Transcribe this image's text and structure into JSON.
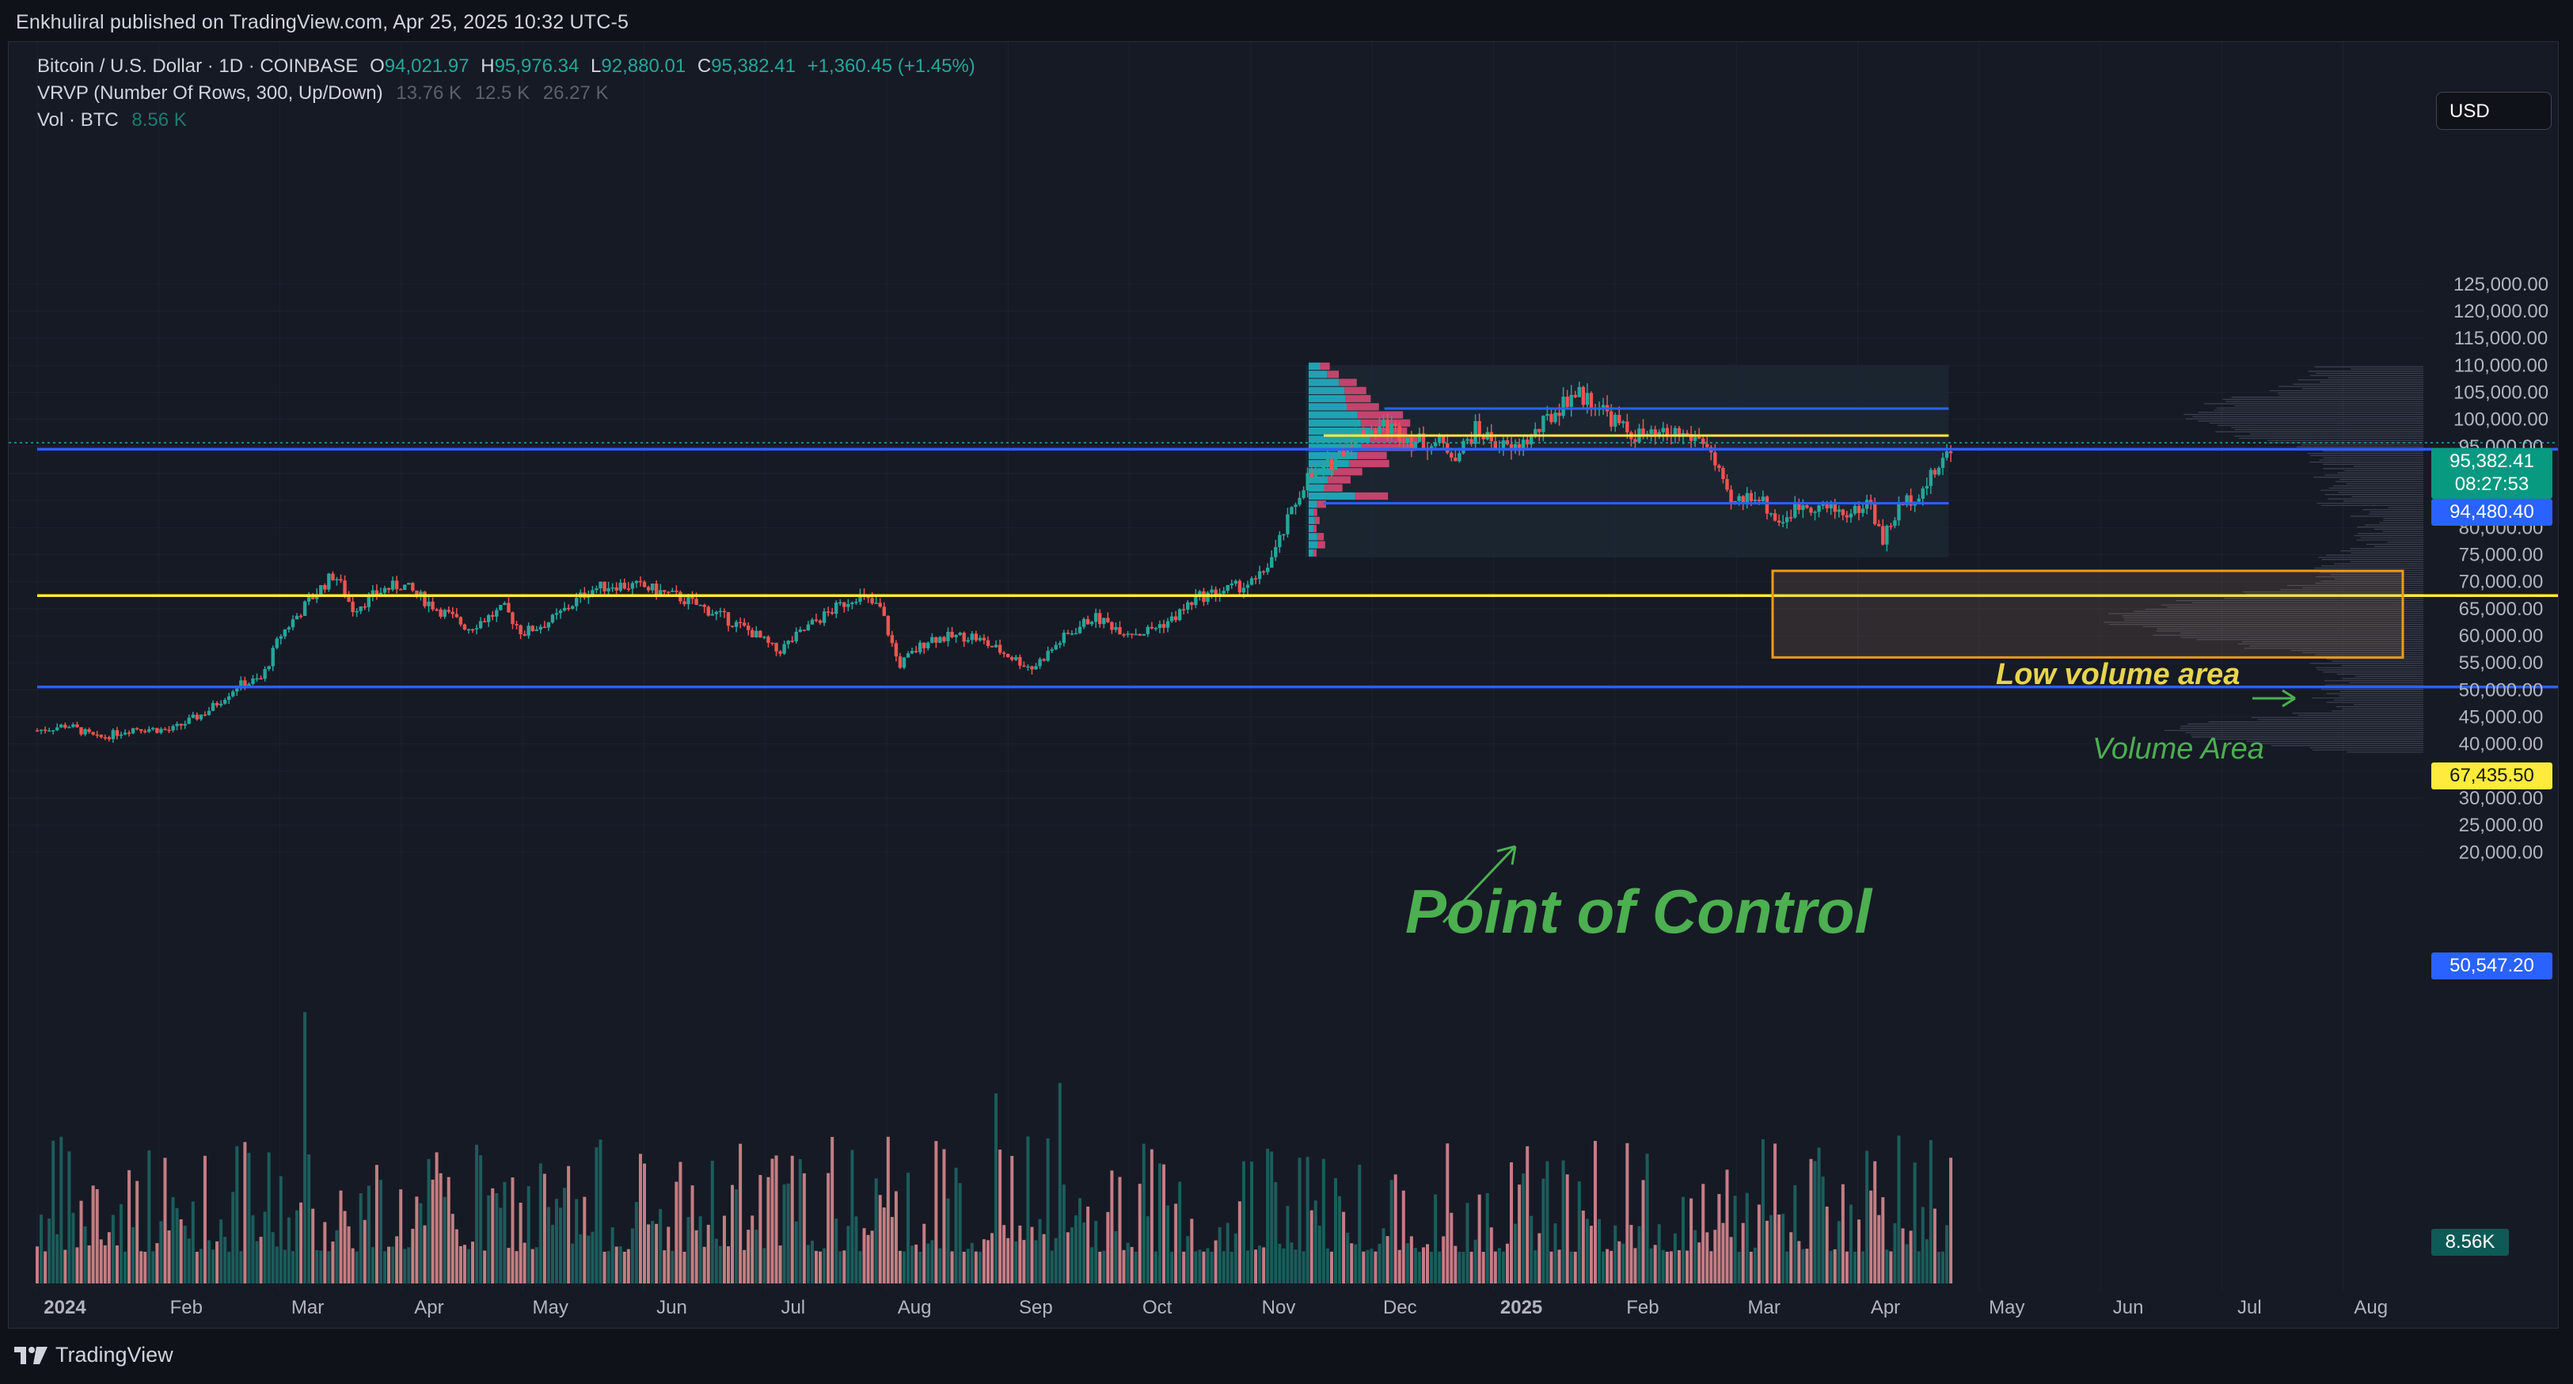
{
  "header": {
    "publisher_text": "Enkhuliral published on TradingView.com, Apr 25, 2025 10:32 UTC-5"
  },
  "legend": {
    "symbol_line": "Bitcoin / U.S. Dollar · 1D · COINBASE",
    "ohlc": {
      "o_label": "O",
      "o": "94,021.97",
      "h_label": "H",
      "h": "95,976.34",
      "l_label": "L",
      "l": "92,880.01",
      "c_label": "C",
      "c": "95,382.41",
      "change": "+1,360.45 (+1.45%)"
    },
    "vrvp_line": "VRVP (Number Of Rows, 300, Up/Down)",
    "vrvp_values": [
      "13.76 K",
      "12.5 K",
      "26.27 K"
    ],
    "vol_line": "Vol · BTC",
    "vol_value": "8.56 K"
  },
  "toolbar": {
    "currency_label": "USD"
  },
  "price_tags": {
    "last_price": "95,382.41",
    "countdown": "08:27:53",
    "blue_line_upper": "94,480.40",
    "yellow_line": "67,435.50",
    "blue_line_lower": "50,547.20",
    "volume_tag": "8.56K"
  },
  "annotations": {
    "low_volume_area": "Low volume area",
    "volume_area": "Volume Area",
    "point_of_control": "Point of Control"
  },
  "footer": {
    "brand": "TradingView"
  },
  "colors": {
    "up": "#26a69a",
    "down": "#ef5350",
    "blue_line": "#2962ff",
    "yellow_line": "#ffeb3b",
    "annotation_green": "#4caf50",
    "annotation_yellow": "#e8d44d",
    "box_orange": "#f09a1a",
    "vrvp_up": "#22b8c9",
    "vrvp_down": "#e04a78"
  },
  "chart_data": {
    "type": "candlestick",
    "title": "Bitcoin / U.S. Dollar · 1D · COINBASE",
    "y_axis": {
      "ticks": [
        "20,000.00",
        "25,000.00",
        "30,000.00",
        "35,000.00",
        "40,000.00",
        "45,000.00",
        "50,000.00",
        "55,000.00",
        "60,000.00",
        "65,000.00",
        "70,000.00",
        "75,000.00",
        "80,000.00",
        "85,000.00",
        "90,000.00",
        "95,000.00",
        "100,000.00",
        "105,000.00",
        "110,000.00",
        "115,000.00",
        "120,000.00",
        "125,000.00"
      ],
      "range": [
        20000,
        128000
      ]
    },
    "x_axis": {
      "ticks": [
        {
          "label": "2024",
          "month_index": 0,
          "bold": true
        },
        {
          "label": "Feb",
          "month_index": 1
        },
        {
          "label": "Mar",
          "month_index": 2
        },
        {
          "label": "Apr",
          "month_index": 3
        },
        {
          "label": "May",
          "month_index": 4
        },
        {
          "label": "Jun",
          "month_index": 5
        },
        {
          "label": "Jul",
          "month_index": 6
        },
        {
          "label": "Aug",
          "month_index": 7
        },
        {
          "label": "Sep",
          "month_index": 8
        },
        {
          "label": "Oct",
          "month_index": 9
        },
        {
          "label": "Nov",
          "month_index": 10
        },
        {
          "label": "Dec",
          "month_index": 11
        },
        {
          "label": "2025",
          "month_index": 12,
          "bold": true
        },
        {
          "label": "Feb",
          "month_index": 13
        },
        {
          "label": "Mar",
          "month_index": 14
        },
        {
          "label": "Apr",
          "month_index": 15
        },
        {
          "label": "May",
          "month_index": 16
        },
        {
          "label": "Jun",
          "month_index": 17
        },
        {
          "label": "Jul",
          "month_index": 18
        },
        {
          "label": "Aug",
          "month_index": 19
        }
      ]
    },
    "price_path_anchors": [
      [
        0,
        42500
      ],
      [
        0.25,
        43500
      ],
      [
        0.5,
        41000
      ],
      [
        0.8,
        43000
      ],
      [
        1.1,
        42500
      ],
      [
        1.4,
        46000
      ],
      [
        1.65,
        50800
      ],
      [
        1.85,
        52000
      ],
      [
        2.0,
        60000
      ],
      [
        2.3,
        68000
      ],
      [
        2.45,
        71500
      ],
      [
        2.6,
        65000
      ],
      [
        2.85,
        68500
      ],
      [
        3.0,
        69500
      ],
      [
        3.3,
        65000
      ],
      [
        3.55,
        61500
      ],
      [
        3.85,
        65000
      ],
      [
        4.0,
        60500
      ],
      [
        4.25,
        63000
      ],
      [
        4.55,
        68500
      ],
      [
        4.75,
        69500
      ],
      [
        5.0,
        69000
      ],
      [
        5.3,
        67000
      ],
      [
        5.6,
        64000
      ],
      [
        5.9,
        60500
      ],
      [
        6.1,
        57000
      ],
      [
        6.4,
        62500
      ],
      [
        6.75,
        67500
      ],
      [
        6.95,
        65000
      ],
      [
        7.1,
        54500
      ],
      [
        7.35,
        59500
      ],
      [
        7.7,
        60000
      ],
      [
        7.95,
        57000
      ],
      [
        8.2,
        54000
      ],
      [
        8.45,
        59500
      ],
      [
        8.7,
        63500
      ],
      [
        8.95,
        61000
      ],
      [
        9.1,
        60500
      ],
      [
        9.35,
        63000
      ],
      [
        9.55,
        67000
      ],
      [
        9.8,
        68500
      ],
      [
        10.05,
        70000
      ],
      [
        10.2,
        75500
      ],
      [
        10.45,
        89000
      ],
      [
        10.6,
        90500
      ],
      [
        10.85,
        97000
      ],
      [
        11.1,
        99000
      ],
      [
        11.35,
        96000
      ],
      [
        11.55,
        95500
      ],
      [
        11.7,
        93500
      ],
      [
        11.85,
        98000
      ],
      [
        12.15,
        94000
      ],
      [
        12.35,
        97500
      ],
      [
        12.65,
        105000
      ],
      [
        12.85,
        103000
      ],
      [
        13.1,
        97500
      ],
      [
        13.3,
        96500
      ],
      [
        13.5,
        97500
      ],
      [
        13.75,
        96000
      ],
      [
        13.95,
        84000
      ],
      [
        14.15,
        86500
      ],
      [
        14.35,
        81000
      ],
      [
        14.55,
        84500
      ],
      [
        14.75,
        83500
      ],
      [
        14.95,
        82500
      ],
      [
        15.1,
        85000
      ],
      [
        15.2,
        77500
      ],
      [
        15.35,
        84000
      ],
      [
        15.55,
        87500
      ],
      [
        15.75,
        94000
      ],
      [
        15.8,
        95382
      ]
    ],
    "horizontal_lines": [
      {
        "price": 94480.4,
        "color": "blue",
        "x_start": 0
      },
      {
        "price": 67435.5,
        "color": "yellow",
        "x_start": 0
      },
      {
        "price": 50547.2,
        "color": "blue",
        "x_start": 0
      },
      {
        "price": 102000,
        "color": "blue",
        "x_start": 11.1,
        "x_end": 15.75
      },
      {
        "price": 97000,
        "color": "yellow",
        "x_start": 10.6,
        "x_end": 15.75
      },
      {
        "price": 84500,
        "color": "blue",
        "x_start": 10.6,
        "x_end": 15.75
      }
    ],
    "volume_area_box": {
      "price_top": 72000,
      "price_bottom": 56000
    },
    "vrvp_range": {
      "price_top": 110000,
      "price_bottom": 74500,
      "x_start": 10.45,
      "x_end": 15.75
    }
  }
}
